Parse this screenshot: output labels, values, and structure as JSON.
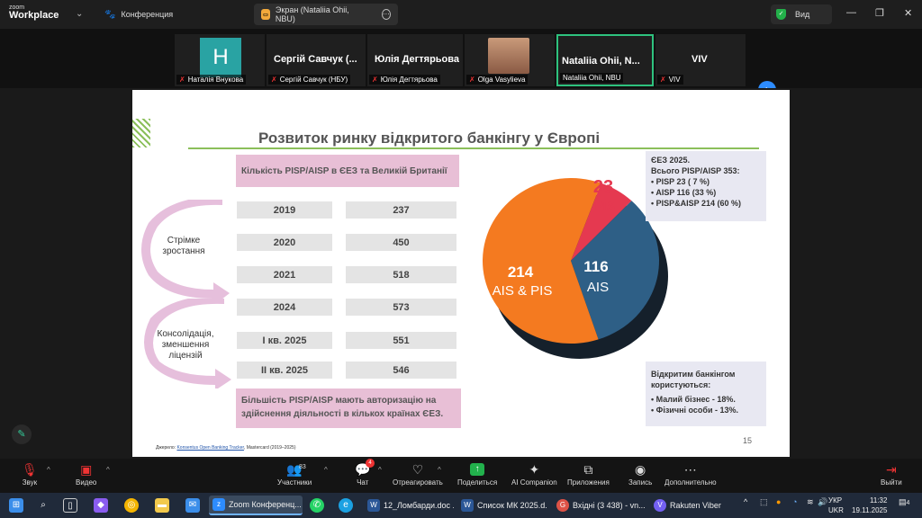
{
  "app": {
    "logo_top": "zoom",
    "logo_bottom": "Workplace"
  },
  "titlebar": {
    "tabs": [
      {
        "label": "Конференция",
        "icon": "paw-icon"
      },
      {
        "label": "Экран (Nataliia Ohii, NBU)",
        "icon": "share-screen-icon"
      }
    ],
    "view_label": "Вид"
  },
  "gallery": {
    "tiles": [
      {
        "display": "H",
        "label": "Наталія Внукова"
      },
      {
        "display": "Сергій Савчук (...",
        "label": "Сергій Савчук (НБУ)"
      },
      {
        "display": "Юлія Дегтярьова",
        "label": "Юлія Дегтярьова"
      },
      {
        "display": "",
        "label": "Olga Vasylieva"
      },
      {
        "display": "Nataliia Ohii, N...",
        "label": "Nataliia Ohii, NBU"
      },
      {
        "display": "VIV",
        "label": "VIV"
      }
    ]
  },
  "slide": {
    "title": "Розвиток ринку відкритого банкінгу у Європі",
    "table_header": "Кількість PISP/AISP в ЄЕЗ та Великій Британії",
    "rows": [
      {
        "period": "2019",
        "value": "237"
      },
      {
        "period": "2020",
        "value": "450"
      },
      {
        "period": "2021",
        "value": "518"
      },
      {
        "period": "2024",
        "value": "573"
      },
      {
        "period": "I кв. 2025",
        "value": "551"
      },
      {
        "period": "II кв. 2025",
        "value": "546"
      }
    ],
    "arrow1_label": "Стрімке зростання",
    "arrow2_label": "Консолідація, зменшення ліцензій",
    "footer_note": "Більшість PISP/AISP мають авторизацію на здійснення діяльності в кількох країнах ЄЕЗ.",
    "info_title": "ЄЕЗ 2025.",
    "info_subtitle": "Всього PISP/AISP 353:",
    "info_items": [
      "PISP 23 ( 7 %)",
      "AISP 116 (33 %)",
      "PISP&AISP 214 (60 %)"
    ],
    "users_title": "Відкритим банкінгом користуються:",
    "users_items": [
      "Малий бізнес - 18%.",
      "Фізичні особи - 13%."
    ],
    "source_prefix": "Джерело: ",
    "source_link": "Konsentus Open Banking Tracker",
    "source_suffix": ", Mastercard (2019–2025)",
    "page_number": "15"
  },
  "chart_data": {
    "type": "pie",
    "categories": [
      "PIS",
      "AIS",
      "AIS & PIS"
    ],
    "values": [
      23,
      116,
      214
    ],
    "labels": [
      {
        "number": "23",
        "text": "PIS"
      },
      {
        "number": "116",
        "text": "AIS"
      },
      {
        "number": "214",
        "text": "AIS & PIS"
      }
    ],
    "colors": [
      "#e53950",
      "#2e5f86",
      "#f47a20"
    ]
  },
  "toolbar": {
    "items": [
      {
        "label": "Звук",
        "icon": "mic-off-icon"
      },
      {
        "label": "Видео",
        "icon": "video-off-icon"
      },
      {
        "label": "Участники",
        "icon": "participants-icon",
        "count": "83"
      },
      {
        "label": "Чат",
        "icon": "chat-icon",
        "badge": "4"
      },
      {
        "label": "Отреагировать",
        "icon": "heart-icon"
      },
      {
        "label": "Поделиться",
        "icon": "share-icon"
      },
      {
        "label": "AI Companion",
        "icon": "sparkle-icon"
      },
      {
        "label": "Приложения",
        "icon": "apps-icon"
      },
      {
        "label": "Запись",
        "icon": "record-icon"
      },
      {
        "label": "Дополнительно",
        "icon": "more-icon"
      },
      {
        "label": "Выйти",
        "icon": "leave-icon"
      }
    ]
  },
  "taskbar": {
    "apps": [
      {
        "label": "Zoom Конференц...",
        "color": "#2d8cff"
      },
      {
        "label": "12_Ломбарди.doc ...",
        "color": "#2b5797"
      },
      {
        "label": "Список МК 2025.d...",
        "color": "#2b5797"
      },
      {
        "label": "Вхідні (3 438) - vn...",
        "color": "#de5246"
      },
      {
        "label": "Rakuten Viber",
        "color": "#7360f2"
      }
    ],
    "lang_top": "УКР",
    "lang_bottom": "UKR",
    "time": "11:32",
    "date": "19.11.2025",
    "notif_count": "4"
  }
}
